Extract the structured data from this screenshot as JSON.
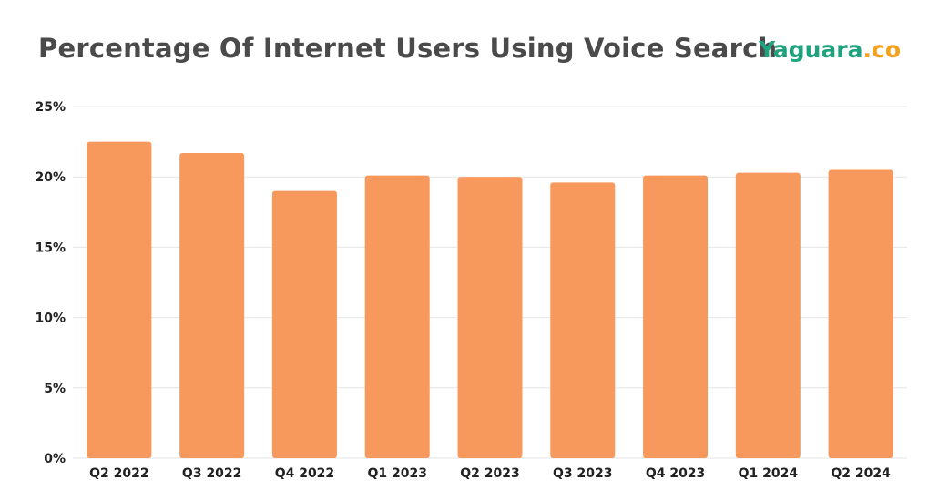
{
  "header": {
    "title": "Percentage Of Internet Users Using Voice Search",
    "brand_main": "Yaguara",
    "brand_tld": ".co"
  },
  "colors": {
    "bar": "#f7995d",
    "brand_green": "#1fa37f",
    "brand_orange": "#f5a21b",
    "grid": "#e6e6e6"
  },
  "chart_data": {
    "type": "bar",
    "title": "Percentage Of Internet Users Using Voice Search",
    "xlabel": "",
    "ylabel": "",
    "categories": [
      "Q2 2022",
      "Q3 2022",
      "Q4 2022",
      "Q1 2023",
      "Q2 2023",
      "Q3 2023",
      "Q4 2023",
      "Q1 2024",
      "Q2 2024"
    ],
    "values": [
      22.5,
      21.7,
      19.0,
      20.1,
      20.0,
      19.6,
      20.1,
      20.3,
      20.5
    ],
    "ylim": [
      0,
      25
    ],
    "yticks": [
      "0%",
      "5%",
      "10%",
      "15%",
      "20%",
      "25%"
    ],
    "grid": true
  }
}
